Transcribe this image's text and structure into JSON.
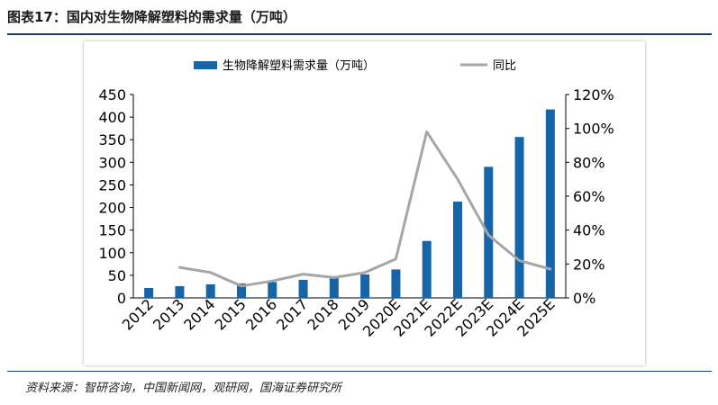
{
  "header": {
    "title": "图表17：国内对生物降解塑料的需求量（万吨）"
  },
  "footer": {
    "source": "资料来源：智研咨询，中国新闻网，观研网，国海证券研究所"
  },
  "colors": {
    "bar": "#1565a8",
    "line": "#a6a6a6",
    "rule": "#1c3b6e"
  },
  "chart_data": {
    "type": "bar",
    "categories": [
      "2012",
      "2013",
      "2014",
      "2015",
      "2016",
      "2017",
      "2018",
      "2019",
      "2020E",
      "2021E",
      "2022E",
      "2023E",
      "2024E",
      "2025E"
    ],
    "series": [
      {
        "name": "生物降解塑料需求量（万吨）",
        "type": "bar",
        "axis": "left",
        "values": [
          22,
          26,
          30,
          32,
          35,
          40,
          45,
          52,
          63,
          126,
          213,
          290,
          356,
          417
        ]
      },
      {
        "name": "同比",
        "type": "line",
        "axis": "right",
        "values": [
          null,
          18,
          15,
          7,
          10,
          14,
          12,
          15,
          23,
          98,
          70,
          37,
          22,
          17
        ]
      }
    ],
    "y_left": {
      "min": 0,
      "max": 450,
      "ticks": [
        "0",
        "50",
        "100",
        "150",
        "200",
        "250",
        "300",
        "350",
        "400",
        "450"
      ]
    },
    "y_right": {
      "min": 0,
      "max": 120,
      "ticks": [
        "0%",
        "20%",
        "40%",
        "60%",
        "80%",
        "100%",
        "120%"
      ]
    },
    "legend_position": "top",
    "grid": false
  }
}
